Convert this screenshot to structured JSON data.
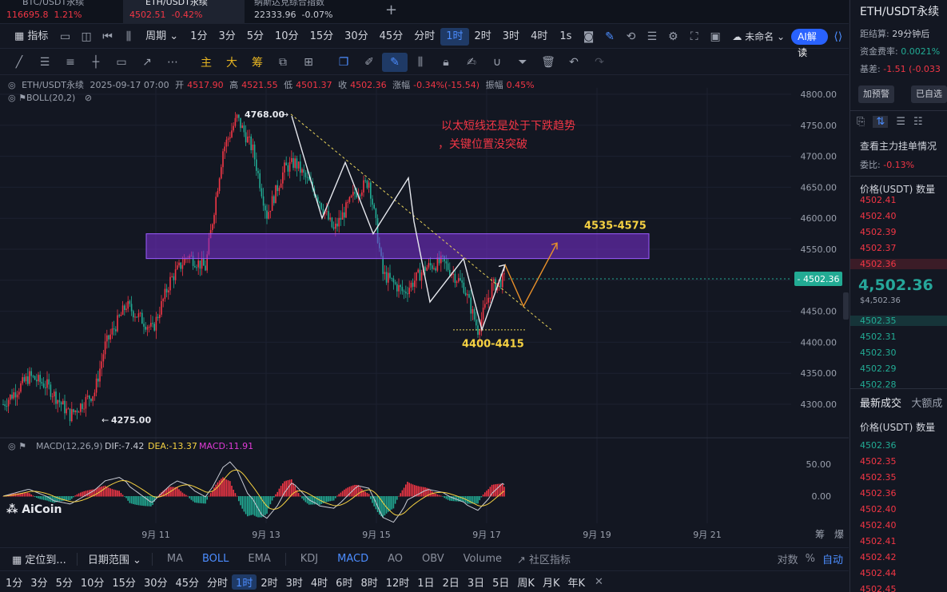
{
  "tabs": [
    {
      "title": "BTC/USDT永续",
      "price": "116695.8",
      "change": "1.21%"
    },
    {
      "title": "ETH/USDT永续",
      "price": "4502.51",
      "change": "-0.42%"
    },
    {
      "title": "纳斯达克综合指数",
      "price": "22333.96",
      "change": "-0.07%"
    }
  ],
  "toolbar": {
    "indicator": "指标",
    "period": "周期",
    "intervals": [
      "1分",
      "3分",
      "5分",
      "10分",
      "15分",
      "30分",
      "45分",
      "分时",
      "1时",
      "2时",
      "3时",
      "4时"
    ],
    "active_interval": "1时",
    "one_s": "1s",
    "layout_name": "未命名",
    "ai_label": "AI解读"
  },
  "drawing_tools": {
    "main": "主",
    "big": "大",
    "chip": "筹"
  },
  "info": {
    "symbol": "ETH/USDT永续",
    "time": "2025-09-17 07:00",
    "open_label": "开",
    "open": "4517.90",
    "high_label": "高",
    "high": "4521.55",
    "low_label": "低",
    "low": "4501.37",
    "close_label": "收",
    "close": "4502.36",
    "chg_label": "涨幅",
    "chg": "-0.34%(-15.54)",
    "amp_label": "振幅",
    "amp": "0.45%",
    "boll": "BOLL(20,2)"
  },
  "price_axis": [
    "4800.00",
    "4750.00",
    "4700.00",
    "4650.00",
    "4600.00",
    "4550.00",
    "4500.00",
    "4450.00",
    "4400.00",
    "4350.00",
    "4300.00"
  ],
  "current_price_tag": "4502.36",
  "annotations": {
    "high": "4768.00",
    "low": "4275.00",
    "note_line1": "以太短线还是处于下跌趋势",
    "note_line2": "，关键位置没突破",
    "resistance": "4535-4575",
    "support": "4400-4415"
  },
  "macd": {
    "label": "MACD(12,26,9)",
    "dif": "DIF:-7.42",
    "dea": "DEA:-13.37",
    "macd": "MACD:11.91",
    "axis": [
      "50.00",
      "0.00"
    ]
  },
  "watermark": "AiCoin",
  "x_axis": [
    "9月 11",
    "9月 13",
    "9月 15",
    "9月 17",
    "9月 19",
    "9月 21"
  ],
  "x_axis_right": [
    "筹",
    "爆"
  ],
  "bottom_bar": {
    "locate": "定位到...",
    "date_range": "日期范围",
    "indicators": [
      "MA",
      "BOLL",
      "EMA",
      "KDJ",
      "MACD",
      "AO",
      "OBV",
      "Volume"
    ],
    "active_indicators": [
      "BOLL",
      "MACD"
    ],
    "community": "社区指标",
    "log": "对数",
    "pct": "%",
    "auto": "自动"
  },
  "bottom_intervals": [
    "1分",
    "3分",
    "5分",
    "10分",
    "15分",
    "30分",
    "45分",
    "分时",
    "1时",
    "2时",
    "3时",
    "4时",
    "6时",
    "8时",
    "12时",
    "1日",
    "2日",
    "3日",
    "5日",
    "周K",
    "月K",
    "年K"
  ],
  "right_panel": {
    "title": "ETH/USDT永续",
    "settle_label": "距结算:",
    "settle": "29分钟后",
    "funding_label": "资金费率:",
    "funding": "0.0021%",
    "basis_label": "基差:",
    "basis": "-1.51 (-0.033",
    "alert_btn": "加预警",
    "watch_btn": "已自选",
    "orders_title": "查看主力挂单情况",
    "ratio_label": "委比:",
    "ratio": "-0.13%",
    "ob_header_price": "价格(USDT)",
    "ob_header_qty": "数量",
    "asks": [
      "4502.41",
      "4502.40",
      "4502.39",
      "4502.37",
      "4502.36"
    ],
    "last_price": "4,502.36",
    "last_price_sub": "$4,502.36",
    "bids": [
      "4502.35",
      "4502.31",
      "4502.30",
      "4502.29",
      "4502.28"
    ],
    "trades_tab": "最新成交",
    "big_tab": "大额成",
    "trades_header_price": "价格(USDT)",
    "trades_header_qty": "数量",
    "trades": [
      {
        "p": "4502.36",
        "side": "buy"
      },
      {
        "p": "4502.35",
        "side": "sell"
      },
      {
        "p": "4502.35",
        "side": "sell"
      },
      {
        "p": "4502.36",
        "side": "sell"
      },
      {
        "p": "4502.40",
        "side": "sell"
      },
      {
        "p": "4502.40",
        "side": "sell"
      },
      {
        "p": "4502.41",
        "side": "sell"
      },
      {
        "p": "4502.42",
        "side": "sell"
      },
      {
        "p": "4502.44",
        "side": "sell"
      },
      {
        "p": "4502.45",
        "side": "sell"
      }
    ]
  },
  "colors": {
    "up": "#f23645",
    "down": "#22ab94",
    "accent": "#2962ff",
    "zone": "#7b2fd6",
    "note": "#f23645",
    "label_yellow": "#f5d142"
  }
}
